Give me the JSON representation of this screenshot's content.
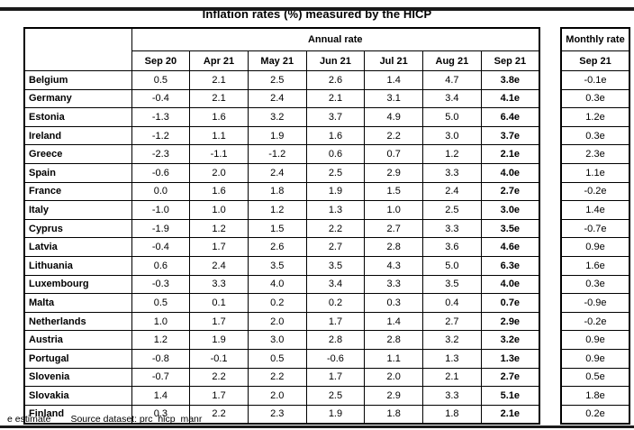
{
  "title": "Inflation rates (%) measured by the HICP",
  "table": {
    "annual_header": "Annual rate",
    "monthly_header": "Monthly rate",
    "columns": [
      "Sep 20",
      "Apr 21",
      "May 21",
      "Jun 21",
      "Jul 21",
      "Aug 21",
      "Sep 21"
    ],
    "monthly_column": "Sep 21",
    "rows": [
      {
        "country": "Belgium",
        "values": [
          "0.5",
          "2.1",
          "2.5",
          "2.6",
          "1.4",
          "4.7",
          "3.8e"
        ],
        "monthly": "-0.1e"
      },
      {
        "country": "Germany",
        "values": [
          "-0.4",
          "2.1",
          "2.4",
          "2.1",
          "3.1",
          "3.4",
          "4.1e"
        ],
        "monthly": "0.3e"
      },
      {
        "country": "Estonia",
        "values": [
          "-1.3",
          "1.6",
          "3.2",
          "3.7",
          "4.9",
          "5.0",
          "6.4e"
        ],
        "monthly": "1.2e"
      },
      {
        "country": "Ireland",
        "values": [
          "-1.2",
          "1.1",
          "1.9",
          "1.6",
          "2.2",
          "3.0",
          "3.7e"
        ],
        "monthly": "0.3e"
      },
      {
        "country": "Greece",
        "values": [
          "-2.3",
          "-1.1",
          "-1.2",
          "0.6",
          "0.7",
          "1.2",
          "2.1e"
        ],
        "monthly": "2.3e"
      },
      {
        "country": "Spain",
        "values": [
          "-0.6",
          "2.0",
          "2.4",
          "2.5",
          "2.9",
          "3.3",
          "4.0e"
        ],
        "monthly": "1.1e"
      },
      {
        "country": "France",
        "values": [
          "0.0",
          "1.6",
          "1.8",
          "1.9",
          "1.5",
          "2.4",
          "2.7e"
        ],
        "monthly": "-0.2e"
      },
      {
        "country": "Italy",
        "values": [
          "-1.0",
          "1.0",
          "1.2",
          "1.3",
          "1.0",
          "2.5",
          "3.0e"
        ],
        "monthly": "1.4e"
      },
      {
        "country": "Cyprus",
        "values": [
          "-1.9",
          "1.2",
          "1.5",
          "2.2",
          "2.7",
          "3.3",
          "3.5e"
        ],
        "monthly": "-0.7e"
      },
      {
        "country": "Latvia",
        "values": [
          "-0.4",
          "1.7",
          "2.6",
          "2.7",
          "2.8",
          "3.6",
          "4.6e"
        ],
        "monthly": "0.9e"
      },
      {
        "country": "Lithuania",
        "values": [
          "0.6",
          "2.4",
          "3.5",
          "3.5",
          "4.3",
          "5.0",
          "6.3e"
        ],
        "monthly": "1.6e"
      },
      {
        "country": "Luxembourg",
        "values": [
          "-0.3",
          "3.3",
          "4.0",
          "3.4",
          "3.3",
          "3.5",
          "4.0e"
        ],
        "monthly": "0.3e"
      },
      {
        "country": "Malta",
        "values": [
          "0.5",
          "0.1",
          "0.2",
          "0.2",
          "0.3",
          "0.4",
          "0.7e"
        ],
        "monthly": "-0.9e"
      },
      {
        "country": "Netherlands",
        "values": [
          "1.0",
          "1.7",
          "2.0",
          "1.7",
          "1.4",
          "2.7",
          "2.9e"
        ],
        "monthly": "-0.2e"
      },
      {
        "country": "Austria",
        "values": [
          "1.2",
          "1.9",
          "3.0",
          "2.8",
          "2.8",
          "3.2",
          "3.2e"
        ],
        "monthly": "0.9e"
      },
      {
        "country": "Portugal",
        "values": [
          "-0.8",
          "-0.1",
          "0.5",
          "-0.6",
          "1.1",
          "1.3",
          "1.3e"
        ],
        "monthly": "0.9e"
      },
      {
        "country": "Slovenia",
        "values": [
          "-0.7",
          "2.2",
          "2.2",
          "1.7",
          "2.0",
          "2.1",
          "2.7e"
        ],
        "monthly": "0.5e"
      },
      {
        "country": "Slovakia",
        "values": [
          "1.4",
          "1.7",
          "2.0",
          "2.5",
          "2.9",
          "3.3",
          "5.1e"
        ],
        "monthly": "1.8e"
      },
      {
        "country": "Finland",
        "values": [
          "0.3",
          "2.2",
          "2.3",
          "1.9",
          "1.8",
          "1.8",
          "2.1e"
        ],
        "monthly": "0.2e"
      }
    ]
  },
  "footer": {
    "estimate_note": "e estimate",
    "source_label": "Source dataset:",
    "source_link": "prc_hicp_manr"
  },
  "colors": {
    "background": "#ffffff",
    "text": "#000000",
    "border": "#000000",
    "frame_bar": "#1a1a1a"
  }
}
